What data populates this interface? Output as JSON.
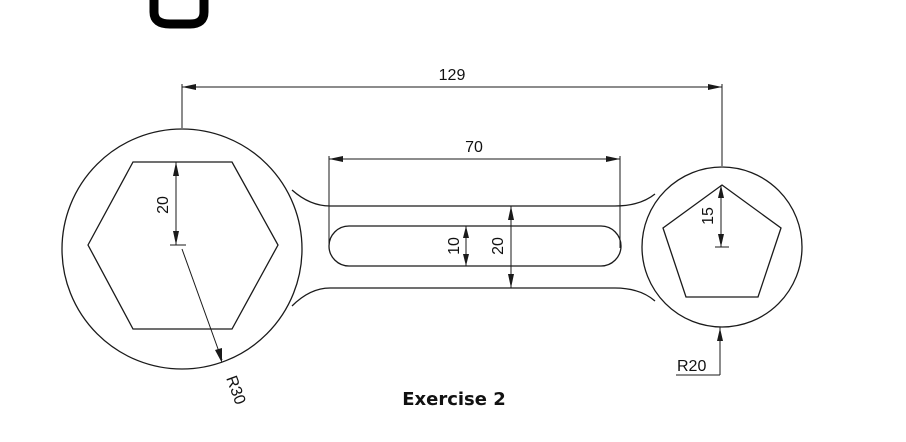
{
  "dimensions": {
    "overall_length": "129",
    "slot_length": "70",
    "hexagon_height": "20",
    "slot_width": "10",
    "handle_width": "20",
    "pentagon_radius": "15",
    "large_radius": "R30",
    "small_radius": "R20"
  },
  "caption": "Exercise 2",
  "colors": {
    "line": "#1a1a1a",
    "background": "#ffffff"
  }
}
